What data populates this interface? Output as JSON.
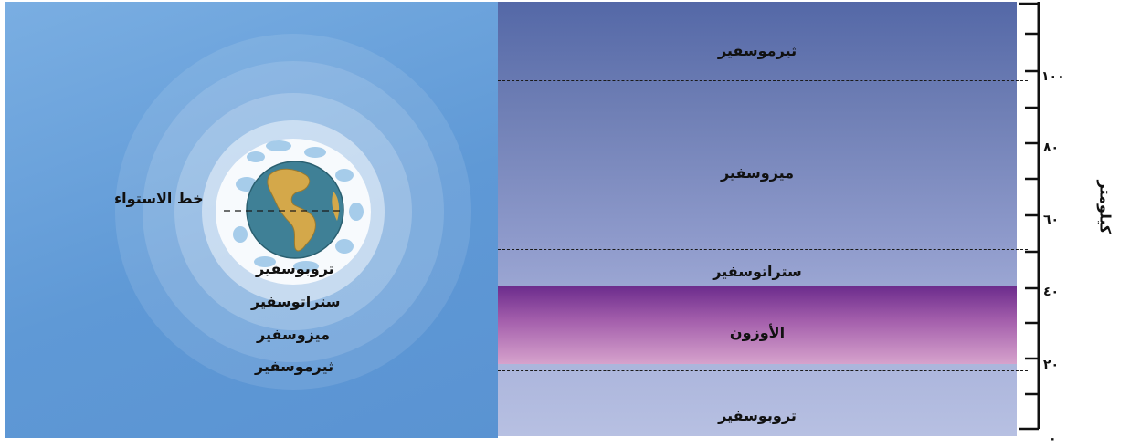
{
  "globe": {
    "equator_label": "خط الاستواء",
    "legend": [
      "تروبوسفير",
      "ستراتوسفير",
      "ميزوسفير",
      "ثيرموسفير"
    ]
  },
  "layers": {
    "thermosphere": "ثيرموسفير",
    "mesosphere": "ميزوسفير",
    "stratosphere": "ستراتوسفير",
    "ozone": "الأوزون",
    "troposphere": "تروبوسفير"
  },
  "axis": {
    "title": "كيلومتر",
    "tick_labels": [
      "٠",
      "٢٠",
      "٤٠",
      "٦٠",
      "٨٠",
      "١٠٠"
    ]
  },
  "colors": {
    "sky": "#5f99d6",
    "ozone": "#6b2b8c",
    "troposphere": "#b7c0e2"
  }
}
